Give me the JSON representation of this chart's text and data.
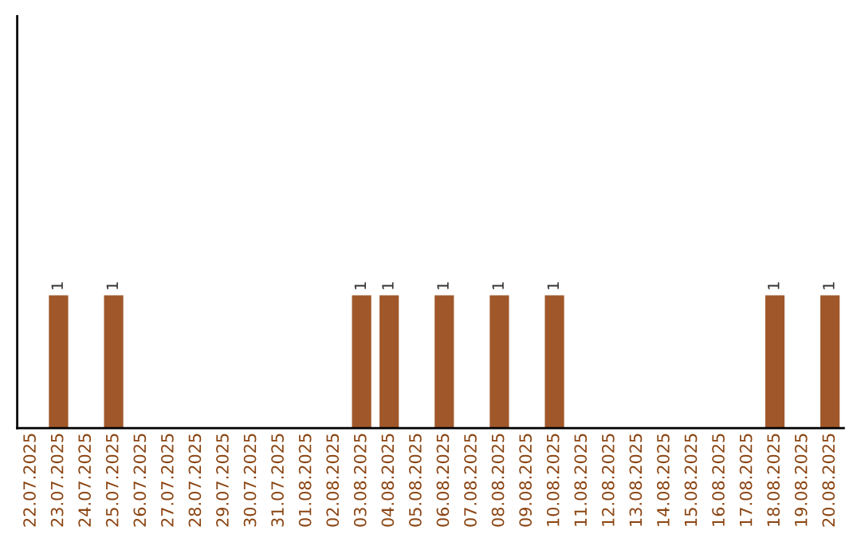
{
  "chart_data": {
    "type": "bar",
    "categories": [
      "22.07.2025",
      "23.07.2025",
      "24.07.2025",
      "25.07.2025",
      "26.07.2025",
      "27.07.2025",
      "28.07.2025",
      "29.07.2025",
      "30.07.2025",
      "31.07.2025",
      "01.08.2025",
      "02.08.2025",
      "03.08.2025",
      "04.08.2025",
      "05.08.2025",
      "06.08.2025",
      "07.08.2025",
      "08.08.2025",
      "09.08.2025",
      "10.08.2025",
      "11.08.2025",
      "12.08.2025",
      "13.08.2025",
      "14.08.2025",
      "15.08.2025",
      "16.08.2025",
      "17.08.2025",
      "18.08.2025",
      "19.08.2025",
      "20.08.2025"
    ],
    "values": [
      0,
      1,
      0,
      1,
      0,
      0,
      0,
      0,
      0,
      0,
      0,
      0,
      1,
      1,
      0,
      1,
      0,
      1,
      0,
      1,
      0,
      0,
      0,
      0,
      0,
      0,
      0,
      1,
      0,
      1
    ],
    "value_labels": [
      null,
      "1",
      null,
      "1",
      null,
      null,
      null,
      null,
      null,
      null,
      null,
      null,
      "1",
      "1",
      null,
      "1",
      null,
      "1",
      null,
      "1",
      null,
      null,
      null,
      null,
      null,
      null,
      null,
      "1",
      null,
      "1"
    ],
    "color": "#a0582a",
    "ylim": [
      0,
      3.1
    ],
    "tick_labels": "x",
    "grid": false
  }
}
